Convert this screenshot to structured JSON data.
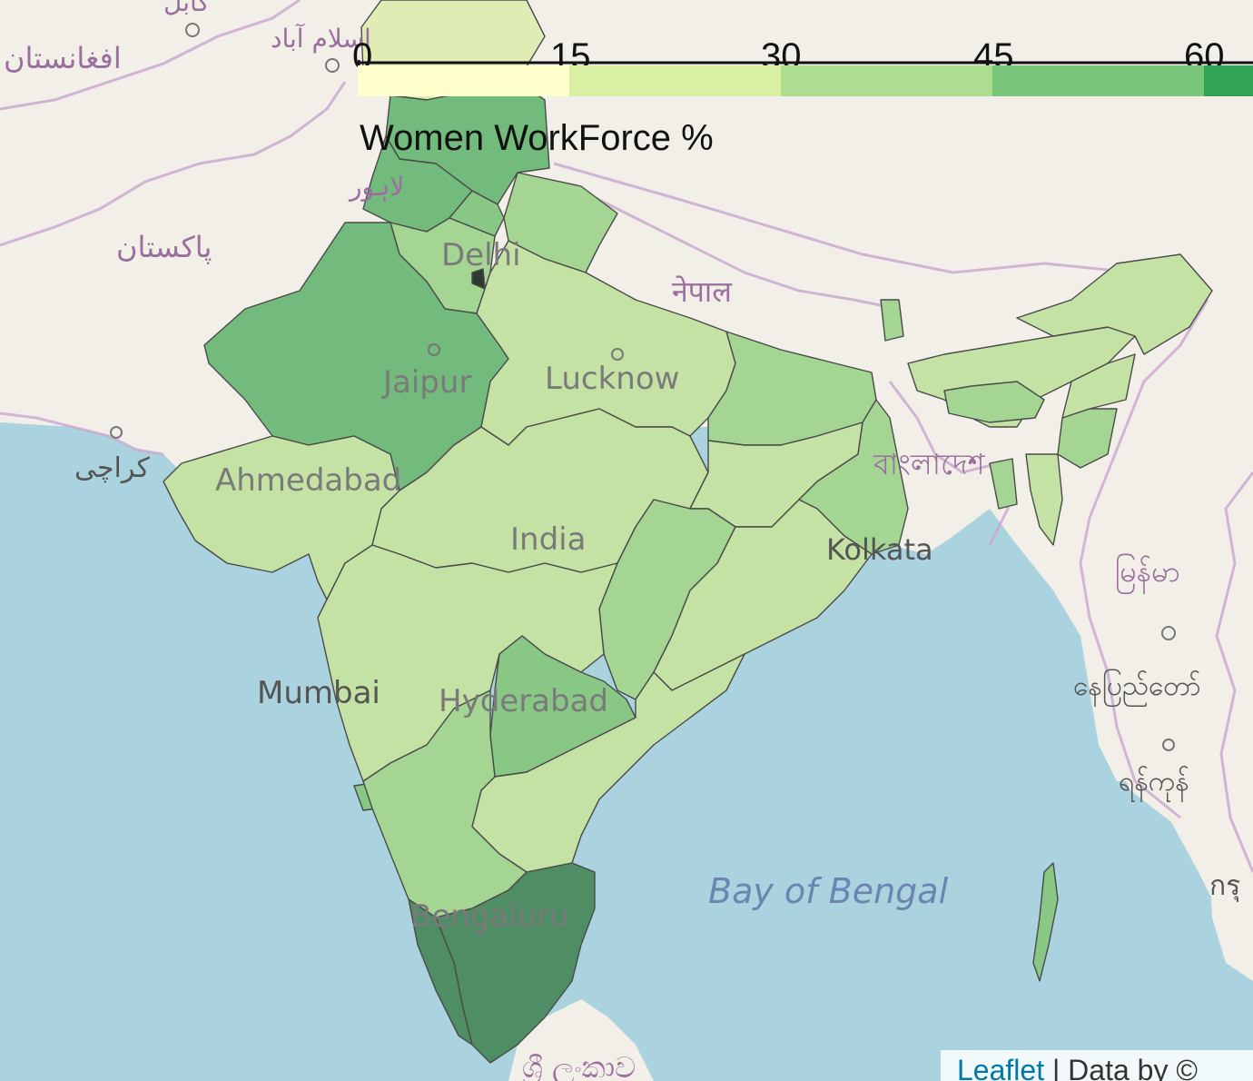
{
  "legend": {
    "title": "Women WorkForce %",
    "ticks": [
      "0",
      "15",
      "30",
      "45",
      "60"
    ],
    "colors": [
      "#ffffcc",
      "#d9f0a3",
      "#addd8e",
      "#78c679",
      "#31a354"
    ]
  },
  "palette": {
    "water": "#aad3df",
    "land": "#f2efe9",
    "border": "#c8a6cf",
    "very_light": "#dfecb4",
    "light": "#c5e2a5",
    "medium": "#a4d593",
    "medium_dark": "#89c784",
    "dark": "#72bb7c",
    "darkest": "#4f8d64"
  },
  "labels": {
    "afghanistan": "افغانستان",
    "kabul": "کابل",
    "islamabad": "اسلام آباد",
    "lahore": "لاہور",
    "pakistan": "پاکستان",
    "karachi": "کراچی",
    "delhi": "Delhi",
    "jaipur": "Jaipur",
    "lucknow": "Lucknow",
    "ahmedabad": "Ahmedabad",
    "india": "India",
    "nepal": "नेपाल",
    "bangladesh": "বাংলাদেশ",
    "kolkata": "Kolkata",
    "myanmar": "မြန်မာ",
    "naypyidaw": "နေပြည်တော်",
    "yangon": "ရန်ကုန်",
    "mumbai": "Mumbai",
    "hyderabad": "Hyderabad",
    "bengaluru": "Bengaluru",
    "bay_of_bengal": "Bay of Bengal",
    "srilanka": "ශ්‍රී ලංකාව",
    "thai": "กรุ"
  },
  "attribution": {
    "leaflet": "Leaflet",
    "separator": " | ",
    "text": "Data by ©"
  }
}
